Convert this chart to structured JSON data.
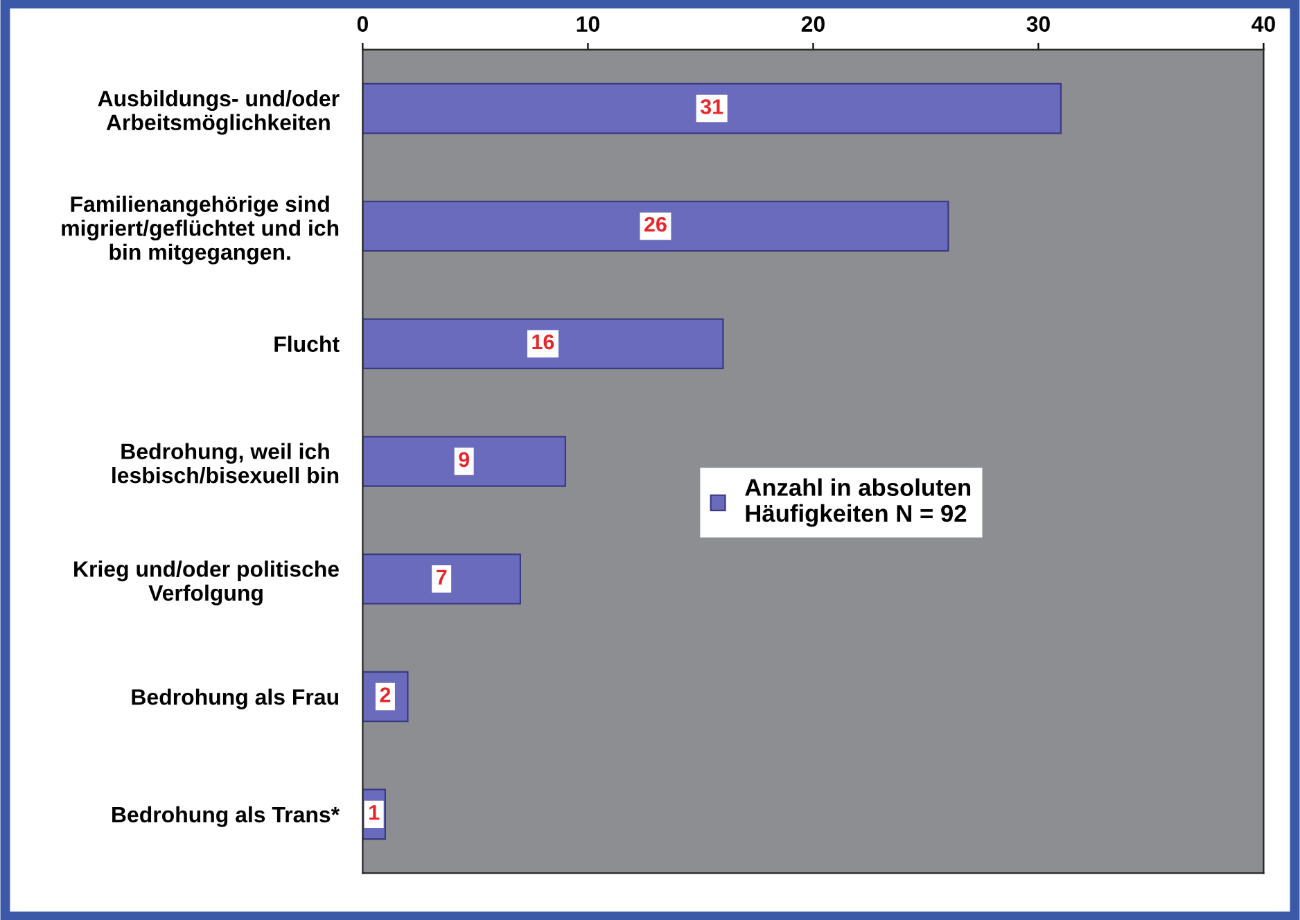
{
  "chart_data": {
    "type": "bar",
    "orientation": "horizontal",
    "categories": [
      "Ausbildungs- und/oder\nArbeitsmöglichkeiten",
      "Familienangehörige sind\nmigriert/geflüchtet und ich\nbin mitgegangen.",
      "Flucht",
      "Bedrohung, weil ich\nlesbisch/bisexuell bin",
      "Krieg und/oder politische\nVerfolgung",
      "Bedrohung als Frau",
      "Bedrohung als Trans*"
    ],
    "series": [
      {
        "name": "Anzahl in absoluten\nHäufigkeiten N = 92",
        "color": "#6b6bbd",
        "values": [
          31,
          26,
          16,
          9,
          7,
          2,
          1
        ]
      }
    ],
    "xlim": [
      0,
      40
    ],
    "xticks": [
      0,
      10,
      20,
      30,
      40
    ],
    "grid": false,
    "legend": "right",
    "data_labels": true
  }
}
